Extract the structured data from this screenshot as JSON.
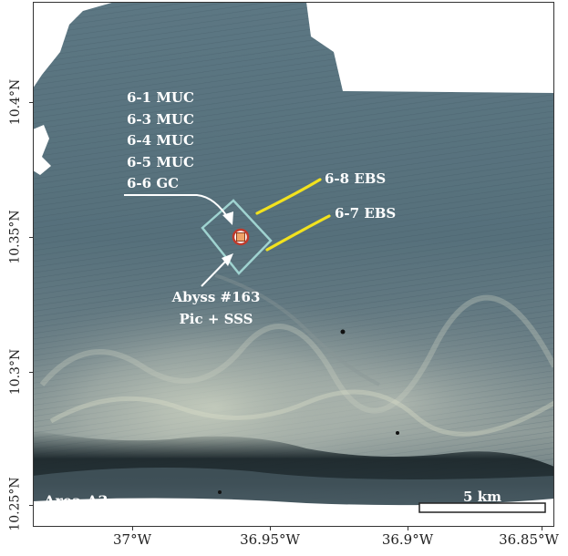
{
  "map": {
    "area_label": "Area A3",
    "scale_bar_label": "5 km",
    "sample_labels": [
      "6-1 MUC",
      "6-3 MUC",
      "6-4 MUC",
      "6-5 MUC",
      "6-6 GC"
    ],
    "ebs_8_label": "6-8 EBS",
    "ebs_7_label": "6-7 EBS",
    "abyss_line1": "Abyss #163",
    "abyss_line2": "Pic + SSS",
    "colors": {
      "bathymetry_dark": "#2f4550",
      "bathymetry_mid": "#5e7580",
      "bathymetry_light": "#a9b3ad",
      "trawl_track": "#f2e21e",
      "survey_box": "#9fd3d0",
      "station_marker": "#c0392b",
      "annotation_text": "#ffffff"
    }
  },
  "axes": {
    "lat_ticks": [
      "10.4°N",
      "10.35°N",
      "10.3°N",
      "10.25°N"
    ],
    "lon_ticks": [
      "37°W",
      "36.95°W",
      "36.9°W",
      "36.85°W"
    ]
  }
}
